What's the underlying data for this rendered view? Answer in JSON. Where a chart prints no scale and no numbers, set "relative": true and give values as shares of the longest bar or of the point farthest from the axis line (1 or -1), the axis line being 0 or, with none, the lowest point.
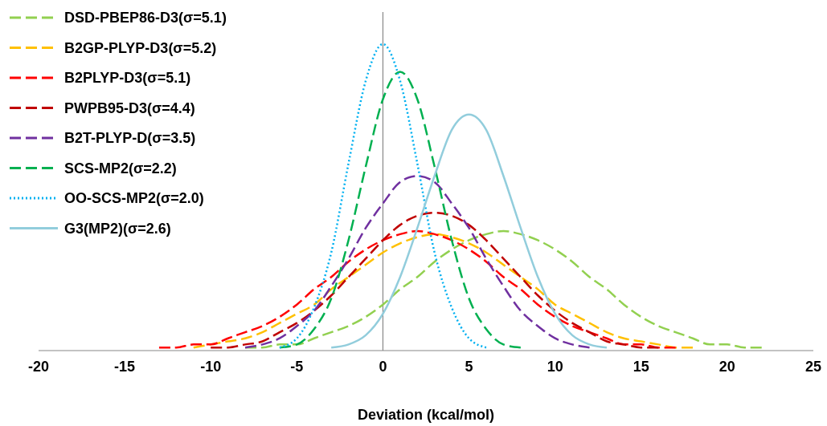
{
  "chart_data": {
    "type": "line",
    "relative": true,
    "xlabel": "Deviation (kcal/mol)",
    "xlim": [
      -20,
      25
    ],
    "xticks": [
      -20,
      -15,
      -10,
      -5,
      0,
      5,
      10,
      15,
      20,
      25
    ],
    "legend": "top left",
    "marker": "none",
    "series": [
      {
        "name": "DSD-PBEP86-D3(σ=5.1)",
        "color": "#92d050",
        "line_style": "dashed",
        "x": [
          -8,
          -7,
          -6,
          -5,
          -4,
          -3,
          -2,
          -1,
          0,
          1,
          2,
          3,
          4,
          5,
          6,
          7,
          8,
          9,
          10,
          11,
          12,
          13,
          14,
          15,
          16,
          17,
          18,
          19,
          20,
          21,
          22
        ],
        "values": [
          0.01,
          0.01,
          0.02,
          0.02,
          0.04,
          0.06,
          0.08,
          0.11,
          0.15,
          0.2,
          0.24,
          0.29,
          0.33,
          0.36,
          0.38,
          0.39,
          0.38,
          0.36,
          0.33,
          0.29,
          0.24,
          0.2,
          0.15,
          0.11,
          0.08,
          0.06,
          0.04,
          0.02,
          0.02,
          0.01,
          0.01
        ]
      },
      {
        "name": "B2GP-PLYP-D3(σ=5.2)",
        "color": "#ffc000",
        "line_style": "dashed",
        "x": [
          -11,
          -10,
          -9,
          -8,
          -7,
          -6,
          -5,
          -4,
          -3,
          -2,
          -1,
          0,
          1,
          2,
          3,
          4,
          5,
          6,
          7,
          8,
          9,
          10,
          11,
          12,
          13,
          14,
          15,
          16,
          17,
          18
        ],
        "values": [
          0.01,
          0.02,
          0.03,
          0.04,
          0.06,
          0.09,
          0.12,
          0.15,
          0.2,
          0.24,
          0.28,
          0.32,
          0.35,
          0.37,
          0.38,
          0.37,
          0.35,
          0.32,
          0.28,
          0.24,
          0.2,
          0.15,
          0.12,
          0.09,
          0.06,
          0.04,
          0.03,
          0.02,
          0.01,
          0.01
        ]
      },
      {
        "name": "B2PLYP-D3(σ=5.1)",
        "color": "#ff0000",
        "line_style": "dashed",
        "x": [
          -13,
          -12,
          -11,
          -10,
          -9,
          -8,
          -7,
          -6,
          -5,
          -4,
          -3,
          -2,
          -1,
          0,
          1,
          2,
          3,
          4,
          5,
          6,
          7,
          8,
          9,
          10,
          11,
          12,
          13,
          14,
          15,
          16,
          17
        ],
        "values": [
          0.01,
          0.01,
          0.02,
          0.02,
          0.04,
          0.06,
          0.08,
          0.11,
          0.15,
          0.2,
          0.24,
          0.29,
          0.33,
          0.36,
          0.38,
          0.39,
          0.38,
          0.36,
          0.33,
          0.29,
          0.24,
          0.2,
          0.15,
          0.11,
          0.08,
          0.06,
          0.04,
          0.02,
          0.02,
          0.01,
          0.01
        ]
      },
      {
        "name": "PWPB95-D3(σ=4.4)",
        "color": "#c00000",
        "line_style": "dashed",
        "x": [
          -10,
          -9,
          -8,
          -7,
          -6,
          -5,
          -4,
          -3,
          -2,
          -1,
          0,
          1,
          2,
          3,
          4,
          5,
          6,
          7,
          8,
          9,
          10,
          11,
          12,
          13,
          14,
          15,
          16
        ],
        "values": [
          0.01,
          0.01,
          0.02,
          0.03,
          0.06,
          0.09,
          0.13,
          0.18,
          0.24,
          0.3,
          0.36,
          0.41,
          0.44,
          0.45,
          0.44,
          0.41,
          0.36,
          0.3,
          0.24,
          0.18,
          0.13,
          0.09,
          0.06,
          0.03,
          0.02,
          0.01,
          0.01
        ]
      },
      {
        "name": "B2T-PLYP-D(σ=3.5)",
        "color": "#7030a0",
        "line_style": "dashed",
        "x": [
          -8,
          -7,
          -6,
          -5,
          -4,
          -3,
          -2,
          -1,
          0,
          1,
          2,
          3,
          4,
          5,
          6,
          7,
          8,
          9,
          10,
          11,
          12
        ],
        "values": [
          0.01,
          0.02,
          0.04,
          0.08,
          0.13,
          0.21,
          0.3,
          0.4,
          0.48,
          0.55,
          0.57,
          0.55,
          0.48,
          0.4,
          0.3,
          0.21,
          0.13,
          0.08,
          0.04,
          0.02,
          0.01
        ]
      },
      {
        "name": "SCS-MP2(σ=2.2)",
        "color": "#00b050",
        "line_style": "dashed",
        "x": [
          -6,
          -5,
          -4,
          -3,
          -2,
          -1,
          0,
          1,
          2,
          3,
          4,
          5,
          6,
          7,
          8
        ],
        "values": [
          0.01,
          0.02,
          0.07,
          0.17,
          0.36,
          0.6,
          0.82,
          0.91,
          0.82,
          0.6,
          0.36,
          0.17,
          0.07,
          0.02,
          0.01
        ]
      },
      {
        "name": "OO-SCS-MP2(σ=2.0)",
        "color": "#00b0f0",
        "line_style": "dotted",
        "x": [
          -6,
          -5,
          -4,
          -3,
          -2,
          -1,
          0,
          1,
          2,
          3,
          4,
          5,
          6
        ],
        "values": [
          0.01,
          0.04,
          0.14,
          0.32,
          0.61,
          0.88,
          1,
          0.88,
          0.61,
          0.32,
          0.14,
          0.04,
          0.01
        ]
      },
      {
        "name": "G3(MP2)(σ=2.6)",
        "color": "#92cddc",
        "line_style": "solid",
        "x": [
          -3,
          -2,
          -1,
          0,
          1,
          2,
          3,
          4,
          5,
          6,
          7,
          8,
          9,
          10,
          11,
          12,
          13
        ],
        "values": [
          0.01,
          0.02,
          0.05,
          0.12,
          0.24,
          0.4,
          0.57,
          0.72,
          0.77,
          0.72,
          0.57,
          0.4,
          0.24,
          0.12,
          0.05,
          0.02,
          0.01
        ]
      }
    ]
  }
}
